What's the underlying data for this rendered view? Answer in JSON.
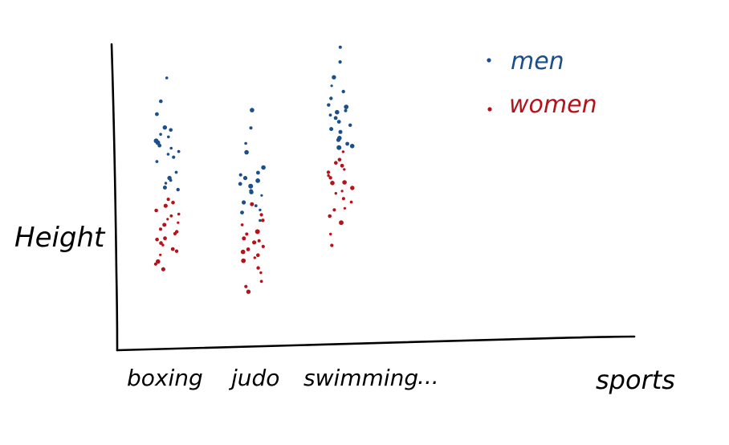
{
  "chart_data": {
    "type": "scatter",
    "style": "hand-drawn",
    "grid": false,
    "legend_position": "top-right",
    "xlabel": "sports",
    "ylabel": "Height",
    "categories": [
      "boxing",
      "judo",
      "swimming",
      "..."
    ],
    "series": [
      {
        "name": "men",
        "color": "#1b4f8c",
        "points": {
          "boxing": [
            90,
            82,
            78,
            73,
            72,
            71,
            70,
            69,
            68,
            67,
            66,
            65,
            64,
            63,
            62,
            58,
            56,
            55,
            54,
            53,
            52
          ],
          "judo": [
            79,
            73,
            68,
            65,
            60,
            58,
            57,
            56,
            55,
            54,
            53,
            52,
            51,
            50,
            48,
            47,
            45,
            44,
            42
          ],
          "swimming": [
            100,
            95,
            90,
            87,
            85,
            83,
            81,
            80,
            79,
            78,
            77,
            76,
            75,
            74,
            73,
            72,
            70,
            69,
            68,
            67,
            66
          ]
        }
      },
      {
        "name": "women",
        "color": "#b5121b",
        "points": {
          "boxing": [
            49,
            48,
            47,
            45,
            44,
            43,
            42,
            41,
            40,
            39,
            38,
            37,
            36,
            35,
            34,
            33,
            32,
            31,
            30,
            28,
            27,
            25
          ],
          "judo": [
            47,
            44,
            42,
            40,
            38,
            37,
            36,
            35,
            34,
            33,
            32,
            31,
            30,
            29,
            28,
            26,
            24,
            21,
            19,
            18
          ],
          "swimming": [
            65,
            62,
            61,
            60,
            59,
            58,
            57,
            56,
            55,
            54,
            53,
            52,
            51,
            49,
            48,
            46,
            45,
            43,
            41,
            37,
            33
          ]
        }
      }
    ]
  }
}
